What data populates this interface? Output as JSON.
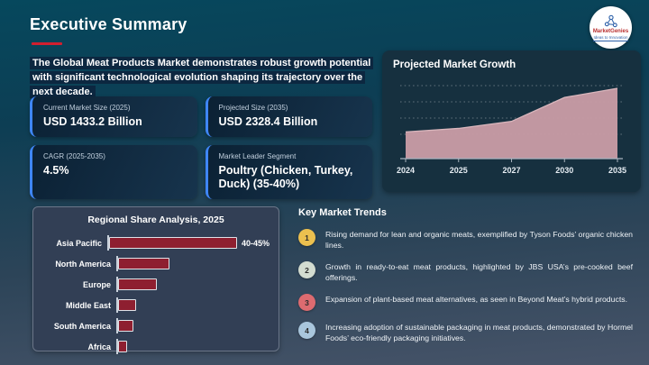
{
  "slide": {
    "title": "Executive Summary"
  },
  "logo": {
    "name": "MarketGenies",
    "tagline": "Ideas to Innovation",
    "icon": "molecule-network-icon"
  },
  "intro": "The Global Meat Products Market demonstrates robust growth potential with significant technological evolution shaping its trajectory over the next decade.",
  "stat_cards": [
    {
      "label": "Current Market Size (2025)",
      "value": "USD 1433.2 Billion"
    },
    {
      "label": "Projected Size (2035)",
      "value": "USD 2328.4 Billion"
    },
    {
      "label": "CAGR (2025-2035)",
      "value": "4.5%"
    },
    {
      "label": "Market Leader Segment",
      "value": "Poultry (Chicken, Turkey, Duck) (35-40%)"
    }
  ],
  "chart_data": [
    {
      "type": "area",
      "title": "Projected Market Growth",
      "x": [
        "2024",
        "2025",
        "2027",
        "2030",
        "2035"
      ],
      "values": [
        1371,
        1433.2,
        1566,
        1900,
        2328.4
      ],
      "values_note": "estimated USD Billion; y-axis unlabeled in source",
      "display_heights": [
        0.38,
        0.43,
        0.53,
        0.87,
        1.0
      ],
      "xlabel": "",
      "ylabel": "",
      "grid": "dotted-horizontal",
      "legend": "none",
      "fill_color": "#c79ba4",
      "line_color": "#d9b6bc"
    },
    {
      "type": "bar",
      "orientation": "horizontal",
      "title": "Regional Share Analysis, 2025",
      "categories": [
        "Asia Pacific",
        "North America",
        "Europe",
        "Middle East",
        "South America",
        "Africa"
      ],
      "values": [
        42.5,
        17,
        13,
        6,
        5,
        3
      ],
      "values_note": "estimated % share; only Asia Pacific labeled",
      "annotation": {
        "category": "Asia Pacific",
        "label": "40-45%"
      },
      "bar_color": "#8e1f30",
      "xlim": [
        0,
        45
      ],
      "grid": "off",
      "legend": "none"
    }
  ],
  "trends": {
    "title": "Key Market Trends",
    "items": [
      {
        "number": "1",
        "color": "#ecc04f",
        "text": "Rising demand for lean and organic meats, exemplified by Tyson Foods’ organic chicken lines."
      },
      {
        "number": "2",
        "color": "#d3dcd0",
        "text": "Growth in ready-to-eat meat products, highlighted by JBS USA’s pre-cooked beef offerings."
      },
      {
        "number": "3",
        "color": "#dd6b70",
        "text": "Expansion of plant-based meat alternatives, as seen in Beyond Meat’s hybrid products."
      },
      {
        "number": "4",
        "color": "#a9c6dc",
        "text": "Increasing adoption of sustainable packaging in meat products, demonstrated by Hormel Foods’ eco-friendly packaging initiatives."
      }
    ]
  },
  "colors": {
    "background_top": "#06485d",
    "background_bottom": "#475469",
    "accent_red": "#d11f2f",
    "card_accent_blue": "#3f86f7",
    "card_bg": "#102941",
    "panel_bg_dark": "#16303f",
    "panel_bg_slate": "#323f55",
    "area_fill": "#c79ba4",
    "bar_maroon": "#8e1f30"
  }
}
